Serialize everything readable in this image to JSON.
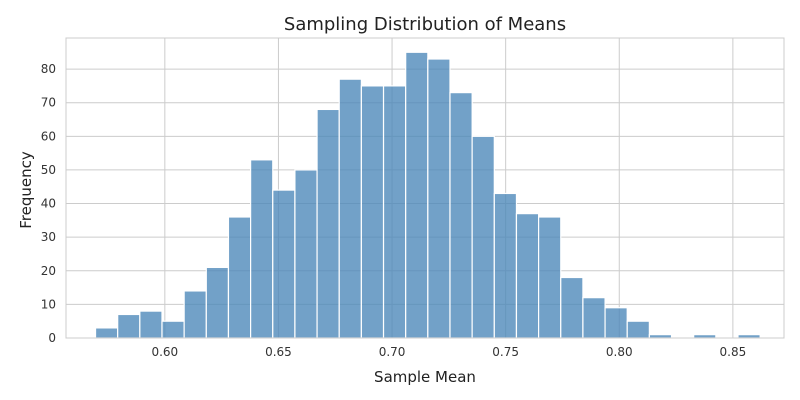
{
  "chart_data": {
    "type": "bar",
    "title": "Sampling Distribution of Means",
    "xlabel": "Sample Mean",
    "ylabel": "Frequency",
    "bin_start": 0.5695,
    "bin_width": 0.00975,
    "values": [
      3,
      7,
      8,
      5,
      14,
      21,
      36,
      53,
      44,
      50,
      68,
      77,
      75,
      75,
      85,
      83,
      73,
      60,
      43,
      37,
      36,
      18,
      12,
      9,
      5,
      1,
      0,
      1,
      0,
      1
    ],
    "xlim": [
      0.5565,
      0.8725
    ],
    "ylim": [
      0,
      89.25
    ],
    "x_ticks": [
      0.6,
      0.65,
      0.7,
      0.75,
      0.8,
      0.85
    ],
    "x_tick_labels": [
      "0.60",
      "0.65",
      "0.70",
      "0.75",
      "0.80",
      "0.85"
    ],
    "y_ticks": [
      0,
      10,
      20,
      30,
      40,
      50,
      60,
      70,
      80
    ],
    "y_tick_labels": [
      "0",
      "10",
      "20",
      "30",
      "40",
      "50",
      "60",
      "70",
      "80"
    ],
    "grid": true,
    "bar_color": "#4a86b9",
    "bar_edge_color": "#ffffff",
    "grid_color": "#cccccc",
    "axis_color": "#cccccc"
  }
}
